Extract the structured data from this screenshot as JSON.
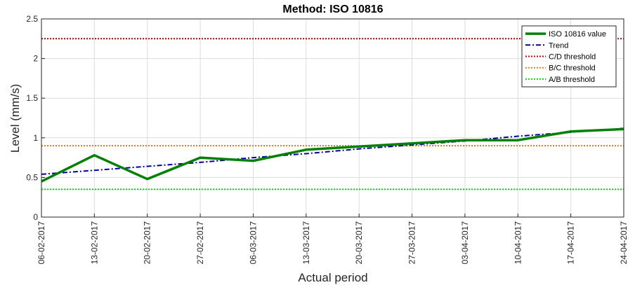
{
  "chart_data": {
    "type": "line",
    "title": "Method: ISO 10816",
    "xlabel": "Actual period",
    "ylabel": "Level (mm/s)",
    "categories": [
      "06-02-2017",
      "13-02-2017",
      "20-02-2017",
      "27-02-2017",
      "06-03-2017",
      "13-03-2017",
      "20-03-2017",
      "27-03-2017",
      "03-04-2017",
      "10-04-2017",
      "17-04-2017",
      "24-04-2017"
    ],
    "ylim": [
      0,
      2.5
    ],
    "yticks": [
      "0",
      "0.5",
      "1",
      "1.5",
      "2",
      "2.5"
    ],
    "grid": true,
    "legend_position": "top-right",
    "series": [
      {
        "name": "ISO 10816 value",
        "style": "solid",
        "color": "#008000",
        "values": [
          0.45,
          0.78,
          0.48,
          0.75,
          0.71,
          0.85,
          0.89,
          0.93,
          0.97,
          0.97,
          1.08,
          1.11
        ]
      },
      {
        "name": "Trend",
        "style": "dashdot",
        "color": "#0000a0",
        "values": [
          0.54,
          0.59,
          0.64,
          0.69,
          0.75,
          0.8,
          0.86,
          0.91,
          0.96,
          1.02,
          1.07,
          1.12
        ]
      },
      {
        "name": "C/D threshold",
        "style": "dotted",
        "color": "#c00000",
        "constant": 2.25
      },
      {
        "name": "B/C threshold",
        "style": "dotted",
        "color": "#e08000",
        "constant": 0.9
      },
      {
        "name": "A/B threshold",
        "style": "dotted",
        "color": "#00dd00",
        "constant": 0.35
      }
    ]
  }
}
